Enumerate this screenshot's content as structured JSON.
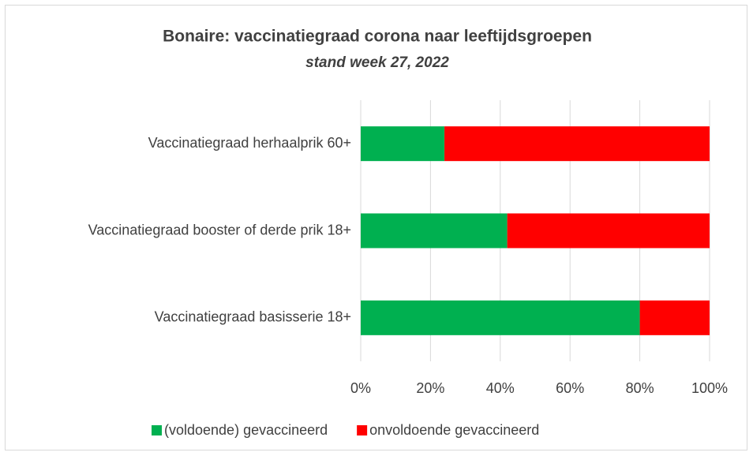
{
  "chart_data": {
    "type": "bar",
    "orientation": "horizontal",
    "stacked": true,
    "title": "Bonaire: vaccinatiegraad corona  naar leeftijdsgroepen",
    "subtitle": "stand week 27, 2022",
    "categories": [
      "Vaccinatiegraad herhaalprik 60+",
      "Vaccinatiegraad booster of derde prik 18+",
      "Vaccinatiegraad basisserie 18+"
    ],
    "series": [
      {
        "name": "(voldoende) gevaccineerd",
        "color": "#00b050",
        "values": [
          24,
          42,
          80
        ]
      },
      {
        "name": "onvoldoende gevaccineerd",
        "color": "#ff0000",
        "values": [
          76,
          58,
          20
        ]
      }
    ],
    "xlim": [
      0,
      100
    ],
    "xticks": [
      {
        "value": 0,
        "label": "0%"
      },
      {
        "value": 20,
        "label": "20%"
      },
      {
        "value": 40,
        "label": "40%"
      },
      {
        "value": 60,
        "label": "60%"
      },
      {
        "value": 80,
        "label": "80%"
      },
      {
        "value": 100,
        "label": "100%"
      }
    ],
    "grid": true
  }
}
